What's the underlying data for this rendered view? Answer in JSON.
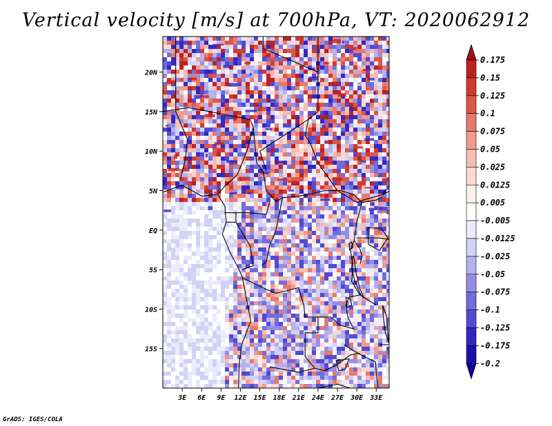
{
  "title": "Vertical velocity [m/s] at 700hPa, VT: 2020062912",
  "credit": "GrADS: IGES/COLA",
  "map": {
    "lon_range": [
      0,
      35
    ],
    "lat_range": [
      -20,
      24.5
    ],
    "x_ticks": [
      "3E",
      "6E",
      "9E",
      "12E",
      "15E",
      "18E",
      "21E",
      "24E",
      "27E",
      "30E",
      "33E"
    ],
    "x_tick_values": [
      3,
      6,
      9,
      12,
      15,
      18,
      21,
      24,
      27,
      30,
      33
    ],
    "y_ticks": [
      "20N",
      "15N",
      "10N",
      "5N",
      "EQ",
      "5S",
      "10S",
      "15S"
    ],
    "y_tick_values": [
      20,
      15,
      10,
      5,
      0,
      -5,
      -10,
      -15
    ]
  },
  "colorbar": {
    "labels": [
      "0.175",
      "0.15",
      "0.125",
      "0.1",
      "0.075",
      "0.05",
      "0.025",
      "0.0125",
      "0.005",
      "-0.005",
      "-0.0125",
      "-0.025",
      "-0.05",
      "-0.075",
      "-0.1",
      "-0.125",
      "-0.175",
      "-0.2"
    ],
    "colors": [
      "#a01010",
      "#bd2220",
      "#cf3a30",
      "#de5648",
      "#e87a6c",
      "#f09b8e",
      "#f6bdb3",
      "#fbd9d2",
      "#fdf0ed",
      "#ffffff",
      "#ecebfb",
      "#d3d1f6",
      "#b4b1ee",
      "#948fe5",
      "#736cdc",
      "#524ad2",
      "#3428c2",
      "#1c10a8",
      "#10069a"
    ]
  }
}
